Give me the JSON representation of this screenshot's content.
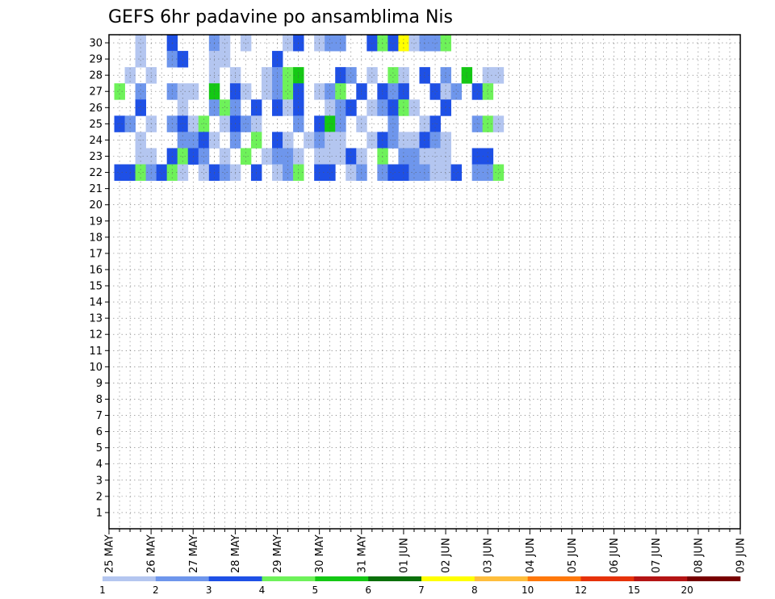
{
  "chart_data": {
    "type": "heatmap",
    "title": "GEFS 6hr padavine po ansamblima Nis",
    "xlabel": "",
    "ylabel": "",
    "x_tick_labels": [
      "25 MAY",
      "26 MAY",
      "27 MAY",
      "28 MAY",
      "29 MAY",
      "30 MAY",
      "31 MAY",
      "01 JUN",
      "02 JUN",
      "03 JUN",
      "04 JUN",
      "05 JUN",
      "06 JUN",
      "07 JUN",
      "08 JUN",
      "09 JUN"
    ],
    "steps_per_day": 4,
    "y_tick_labels": [
      "1",
      "2",
      "3",
      "4",
      "5",
      "6",
      "7",
      "8",
      "9",
      "10",
      "11",
      "12",
      "13",
      "14",
      "15",
      "16",
      "17",
      "18",
      "19",
      "20",
      "21",
      "22",
      "23",
      "24",
      "25",
      "26",
      "27",
      "28",
      "29",
      "30"
    ],
    "ensemble_members": 30,
    "grid": true,
    "colorbar": {
      "placement": "bottom",
      "levels": [
        "1",
        "2",
        "3",
        "4",
        "5",
        "6",
        "7",
        "8",
        "10",
        "12",
        "15",
        "20"
      ],
      "colors": [
        "#b4c6f0",
        "#6e96ec",
        "#1e50e6",
        "#6ef25a",
        "#14c814",
        "#0a700a",
        "#ffff00",
        "#ffbe3c",
        "#ff780a",
        "#e6320a",
        "#b41414",
        "#780000"
      ]
    },
    "cells": [
      [
        3,
        30,
        1
      ],
      [
        6,
        30,
        3
      ],
      [
        10,
        30,
        2
      ],
      [
        11,
        30,
        1
      ],
      [
        13,
        30,
        1
      ],
      [
        17,
        30,
        1
      ],
      [
        18,
        30,
        3
      ],
      [
        20,
        30,
        1
      ],
      [
        21,
        30,
        2
      ],
      [
        22,
        30,
        2
      ],
      [
        25,
        30,
        3
      ],
      [
        26,
        30,
        4
      ],
      [
        27,
        30,
        3
      ],
      [
        28,
        30,
        7
      ],
      [
        29,
        30,
        1
      ],
      [
        30,
        30,
        2
      ],
      [
        31,
        30,
        2
      ],
      [
        32,
        30,
        4
      ],
      [
        3,
        29,
        1
      ],
      [
        6,
        29,
        2
      ],
      [
        7,
        29,
        3
      ],
      [
        10,
        29,
        1
      ],
      [
        11,
        29,
        1
      ],
      [
        16,
        29,
        3
      ],
      [
        2,
        28,
        1
      ],
      [
        4,
        28,
        1
      ],
      [
        10,
        28,
        1
      ],
      [
        12,
        28,
        1
      ],
      [
        15,
        28,
        1
      ],
      [
        16,
        28,
        2
      ],
      [
        17,
        28,
        4
      ],
      [
        18,
        28,
        5
      ],
      [
        22,
        28,
        3
      ],
      [
        23,
        28,
        2
      ],
      [
        25,
        28,
        1
      ],
      [
        27,
        28,
        4
      ],
      [
        28,
        28,
        1
      ],
      [
        30,
        28,
        3
      ],
      [
        32,
        28,
        2
      ],
      [
        34,
        28,
        5
      ],
      [
        36,
        28,
        1
      ],
      [
        37,
        28,
        1
      ],
      [
        1,
        27,
        4
      ],
      [
        3,
        27,
        2
      ],
      [
        6,
        27,
        2
      ],
      [
        7,
        27,
        1
      ],
      [
        8,
        27,
        1
      ],
      [
        10,
        27,
        5
      ],
      [
        12,
        27,
        3
      ],
      [
        13,
        27,
        1
      ],
      [
        15,
        27,
        1
      ],
      [
        16,
        27,
        2
      ],
      [
        17,
        27,
        4
      ],
      [
        18,
        27,
        3
      ],
      [
        20,
        27,
        1
      ],
      [
        21,
        27,
        2
      ],
      [
        22,
        27,
        4
      ],
      [
        24,
        27,
        3
      ],
      [
        26,
        27,
        3
      ],
      [
        27,
        27,
        2
      ],
      [
        28,
        27,
        3
      ],
      [
        31,
        27,
        3
      ],
      [
        32,
        27,
        1
      ],
      [
        33,
        27,
        2
      ],
      [
        35,
        27,
        3
      ],
      [
        36,
        27,
        4
      ],
      [
        3,
        26,
        3
      ],
      [
        7,
        26,
        1
      ],
      [
        10,
        26,
        2
      ],
      [
        11,
        26,
        4
      ],
      [
        12,
        26,
        2
      ],
      [
        14,
        26,
        3
      ],
      [
        16,
        26,
        3
      ],
      [
        17,
        26,
        1
      ],
      [
        18,
        26,
        3
      ],
      [
        21,
        26,
        1
      ],
      [
        22,
        26,
        2
      ],
      [
        23,
        26,
        3
      ],
      [
        25,
        26,
        1
      ],
      [
        26,
        26,
        2
      ],
      [
        27,
        26,
        3
      ],
      [
        28,
        26,
        4
      ],
      [
        29,
        26,
        1
      ],
      [
        32,
        26,
        3
      ],
      [
        1,
        25,
        3
      ],
      [
        2,
        25,
        2
      ],
      [
        4,
        25,
        1
      ],
      [
        6,
        25,
        2
      ],
      [
        7,
        25,
        3
      ],
      [
        8,
        25,
        1
      ],
      [
        9,
        25,
        4
      ],
      [
        11,
        25,
        1
      ],
      [
        12,
        25,
        3
      ],
      [
        13,
        25,
        2
      ],
      [
        14,
        25,
        1
      ],
      [
        18,
        25,
        2
      ],
      [
        20,
        25,
        3
      ],
      [
        21,
        25,
        5
      ],
      [
        22,
        25,
        2
      ],
      [
        24,
        25,
        1
      ],
      [
        27,
        25,
        2
      ],
      [
        30,
        25,
        1
      ],
      [
        31,
        25,
        3
      ],
      [
        35,
        25,
        2
      ],
      [
        36,
        25,
        4
      ],
      [
        37,
        25,
        1
      ],
      [
        3,
        24,
        1
      ],
      [
        7,
        24,
        2
      ],
      [
        8,
        24,
        2
      ],
      [
        9,
        24,
        3
      ],
      [
        10,
        24,
        1
      ],
      [
        12,
        24,
        2
      ],
      [
        14,
        24,
        4
      ],
      [
        16,
        24,
        3
      ],
      [
        17,
        24,
        1
      ],
      [
        19,
        24,
        1
      ],
      [
        20,
        24,
        2
      ],
      [
        21,
        24,
        1
      ],
      [
        22,
        24,
        1
      ],
      [
        25,
        24,
        1
      ],
      [
        26,
        24,
        3
      ],
      [
        27,
        24,
        2
      ],
      [
        28,
        24,
        1
      ],
      [
        29,
        24,
        1
      ],
      [
        30,
        24,
        3
      ],
      [
        31,
        24,
        2
      ],
      [
        32,
        24,
        1
      ],
      [
        3,
        23,
        1
      ],
      [
        4,
        23,
        1
      ],
      [
        6,
        23,
        3
      ],
      [
        7,
        23,
        4
      ],
      [
        8,
        23,
        3
      ],
      [
        9,
        23,
        2
      ],
      [
        11,
        23,
        1
      ],
      [
        13,
        23,
        4
      ],
      [
        15,
        23,
        1
      ],
      [
        16,
        23,
        2
      ],
      [
        17,
        23,
        2
      ],
      [
        18,
        23,
        1
      ],
      [
        20,
        23,
        1
      ],
      [
        21,
        23,
        1
      ],
      [
        22,
        23,
        1
      ],
      [
        23,
        23,
        3
      ],
      [
        24,
        23,
        1
      ],
      [
        26,
        23,
        4
      ],
      [
        28,
        23,
        2
      ],
      [
        29,
        23,
        2
      ],
      [
        30,
        23,
        1
      ],
      [
        31,
        23,
        1
      ],
      [
        32,
        23,
        1
      ],
      [
        35,
        23,
        3
      ],
      [
        36,
        23,
        3
      ],
      [
        1,
        22,
        3
      ],
      [
        2,
        22,
        3
      ],
      [
        3,
        22,
        4
      ],
      [
        4,
        22,
        2
      ],
      [
        5,
        22,
        3
      ],
      [
        6,
        22,
        4
      ],
      [
        7,
        22,
        1
      ],
      [
        9,
        22,
        1
      ],
      [
        10,
        22,
        3
      ],
      [
        11,
        22,
        2
      ],
      [
        12,
        22,
        1
      ],
      [
        14,
        22,
        3
      ],
      [
        16,
        22,
        1
      ],
      [
        17,
        22,
        2
      ],
      [
        18,
        22,
        4
      ],
      [
        20,
        22,
        3
      ],
      [
        21,
        22,
        3
      ],
      [
        23,
        22,
        1
      ],
      [
        24,
        22,
        2
      ],
      [
        26,
        22,
        2
      ],
      [
        27,
        22,
        3
      ],
      [
        28,
        22,
        3
      ],
      [
        29,
        22,
        2
      ],
      [
        30,
        22,
        2
      ],
      [
        31,
        22,
        1
      ],
      [
        32,
        22,
        1
      ],
      [
        33,
        22,
        3
      ],
      [
        35,
        22,
        2
      ],
      [
        36,
        22,
        2
      ],
      [
        37,
        22,
        4
      ]
    ]
  }
}
